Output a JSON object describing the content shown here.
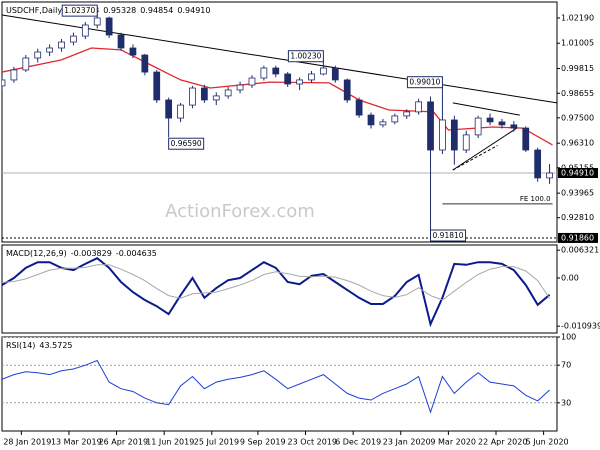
{
  "chart_data": [
    {
      "type": "candlestick",
      "title": "USDCHF,Daily",
      "header_values": [
        0.95113,
        0.95328,
        0.94854,
        {
          "value": 0.9491,
          "label": "0.94910"
        }
      ],
      "xlim": [
        0,
        373
      ],
      "ylim": [
        0.9167,
        1.0294
      ],
      "yticks": [
        {
          "value": 1.0219,
          "label": "1.02190"
        },
        {
          "value": 1.01005,
          "label": "1.01005"
        },
        {
          "value": 0.99815,
          "label": "0.99815"
        },
        {
          "value": 0.98655,
          "label": "0.98655"
        },
        {
          "value": 0.975,
          "label": "0.97500"
        },
        {
          "value": 0.9631,
          "label": "0.96310"
        },
        {
          "value": 0.95155,
          "label": "0.95155"
        },
        {
          "value": 0.93965,
          "label": "0.93965"
        },
        {
          "value": 0.9281,
          "label": "0.92810"
        }
      ],
      "current_price": {
        "value": 0.9491,
        "label": "0.94910"
      },
      "support": {
        "value": 0.9186,
        "label": "0.91860"
      },
      "color": "#1f2d6b",
      "x": [
        0,
        8,
        16,
        24,
        32,
        40,
        48,
        56,
        64,
        72,
        80,
        88,
        96,
        104,
        112,
        120,
        128,
        136,
        144,
        152,
        160,
        168,
        176,
        184,
        192,
        200,
        208,
        216,
        224,
        232,
        240,
        248,
        256,
        264,
        272,
        280,
        288,
        296,
        304,
        312,
        320,
        328,
        336,
        344,
        352,
        360,
        368
      ],
      "open": [
        0.99,
        0.9928,
        0.9975,
        1.0031,
        1.0059,
        1.0078,
        1.0106,
        1.0134,
        1.0186,
        1.0219,
        1.0139,
        1.0078,
        1.0045,
        0.9965,
        0.9834,
        0.9749,
        0.981,
        0.989,
        0.9834,
        0.9853,
        0.9881,
        0.9904,
        0.9937,
        0.9984,
        0.9956,
        0.9909,
        0.9928,
        0.9956,
        0.9984,
        0.9928,
        0.9834,
        0.9763,
        0.9717,
        0.9731,
        0.9759,
        0.9778,
        0.9825,
        0.9599,
        0.974,
        0.9599,
        0.967,
        0.9749,
        0.9731,
        0.9717,
        0.9702,
        0.9599,
        0.9468
      ],
      "high": [
        0.9945,
        0.999,
        1.0045,
        1.0075,
        1.0095,
        1.012,
        1.015,
        1.02,
        1.0237,
        1.0225,
        1.015,
        1.0095,
        1.005,
        0.9975,
        0.9845,
        0.982,
        0.99,
        0.9905,
        0.987,
        0.9895,
        0.992,
        0.995,
        0.9995,
        0.9995,
        0.9965,
        0.994,
        0.997,
        1.0023,
        0.9995,
        0.9935,
        0.9845,
        0.9775,
        0.9745,
        0.977,
        0.979,
        0.984,
        0.985,
        0.9901,
        0.976,
        0.969,
        0.976,
        0.977,
        0.9745,
        0.9735,
        0.971,
        0.961,
        0.9533
      ],
      "low": [
        0.988,
        0.9915,
        0.9965,
        1.001,
        1.004,
        1.006,
        1.009,
        1.012,
        1.017,
        1.0125,
        1.0065,
        1.003,
        0.995,
        0.982,
        0.9659,
        0.973,
        0.9795,
        0.982,
        0.981,
        0.984,
        0.9865,
        0.989,
        0.9925,
        0.994,
        0.9895,
        0.988,
        0.9915,
        0.995,
        0.9915,
        0.982,
        0.975,
        0.97,
        0.9705,
        0.972,
        0.9745,
        0.9765,
        0.9181,
        0.958,
        0.953,
        0.9585,
        0.9655,
        0.9715,
        0.97,
        0.9685,
        0.959,
        0.945,
        0.944
      ],
      "close": [
        0.9928,
        0.9975,
        1.0031,
        1.0059,
        1.0078,
        1.0106,
        1.0134,
        1.0186,
        1.0219,
        1.0139,
        1.0078,
        1.0045,
        0.9965,
        0.9834,
        0.9749,
        0.981,
        0.989,
        0.9834,
        0.9853,
        0.9881,
        0.9904,
        0.9937,
        0.9984,
        0.9956,
        0.9909,
        0.9928,
        0.9956,
        0.9984,
        0.9928,
        0.9834,
        0.9763,
        0.9717,
        0.9731,
        0.9759,
        0.9778,
        0.9825,
        0.9599,
        0.974,
        0.9599,
        0.967,
        0.9749,
        0.9731,
        0.9717,
        0.9702,
        0.9599,
        0.9468,
        0.9491
      ],
      "moving_average": {
        "color": "#e0282e",
        "x": [
          0,
          40,
          60,
          80,
          100,
          120,
          140,
          180,
          220,
          240,
          260,
          290,
          300,
          330,
          350,
          370
        ],
        "values": [
          0.9965,
          1.0022,
          1.0078,
          1.0069,
          0.9998,
          0.9928,
          0.989,
          0.9918,
          0.9914,
          0.9834,
          0.9787,
          0.9778,
          0.9693,
          0.9707,
          0.9702,
          0.9623
        ]
      },
      "trendlines": [
        {
          "x": [
            0,
            373
          ],
          "values": [
            1.0233,
            0.982
          ]
        },
        {
          "x": [
            303,
            348
          ],
          "values": [
            0.982,
            0.9763
          ]
        },
        {
          "x": [
            303,
            346
          ],
          "values": [
            0.9505,
            0.9702
          ]
        },
        {
          "x": [
            303,
            333
          ],
          "values": [
            0.9505,
            0.962
          ],
          "dash": true
        }
      ],
      "fe": {
        "label": "FE 100.0",
        "value": 0.9346,
        "x": [
          296,
          370
        ]
      },
      "annotations": [
        {
          "x": 64,
          "value": 1.0237,
          "label": "1.02370"
        },
        {
          "x": 112,
          "value": 0.9659,
          "label": "0.96590"
        },
        {
          "x": 216,
          "value": 1.0023,
          "label": "1.00230"
        },
        {
          "x": 296,
          "value": 0.9901,
          "label": "0.99010"
        },
        {
          "x": 288,
          "value": 0.9181,
          "label": "0.91810"
        }
      ],
      "watermark": "ActionForex.com"
    },
    {
      "type": "line",
      "title": "MACD(12,26,9)",
      "xlim": [
        0,
        373
      ],
      "ylim": [
        -0.0125,
        0.0075
      ],
      "yticks": [
        0.006321,
        {
          "value": 0,
          "label": "0.00"
        },
        -0.010939
      ],
      "x": [
        0,
        8,
        16,
        24,
        32,
        40,
        48,
        56,
        64,
        72,
        80,
        88,
        96,
        104,
        112,
        120,
        128,
        136,
        144,
        152,
        160,
        168,
        176,
        184,
        192,
        200,
        208,
        216,
        224,
        232,
        240,
        248,
        256,
        264,
        272,
        280,
        288,
        296,
        304,
        312,
        320,
        328,
        336,
        344,
        352,
        360,
        368
      ],
      "series": [
        {
          "color": "#0b1a8c",
          "width": 2,
          "values": [
            -0.0016,
            0,
            0.0023,
            0.0036,
            0.0036,
            0.0023,
            0.0018,
            0.0032,
            0.0045,
            0.0023,
            -0.0009,
            -0.0032,
            -0.005,
            -0.0064,
            -0.0082,
            -0.0039,
            0,
            -0.0045,
            -0.0023,
            -0.0005,
            0,
            0.0018,
            0.0036,
            0.0023,
            -0.0009,
            -0.0014,
            0.0005,
            0.0009,
            -0.0009,
            -0.0027,
            -0.0045,
            -0.0059,
            -0.0059,
            -0.0041,
            -0.0009,
            0.0007,
            -0.0105,
            -0.0045,
            0.0032,
            0.003,
            0.0036,
            0.0036,
            0.0032,
            0.0018,
            -0.0016,
            -0.0061,
            -0.003829
          ]
        },
        {
          "color": "#a8a8a8",
          "width": 1,
          "values": [
            -0.001,
            -0.0008,
            -0.0002,
            0.0008,
            0.0018,
            0.0022,
            0.0022,
            0.0024,
            0.003,
            0.003,
            0.002,
            0.0008,
            -0.0006,
            -0.0024,
            -0.004,
            -0.0046,
            -0.0036,
            -0.0034,
            -0.0032,
            -0.0024,
            -0.0016,
            -0.0006,
            0.0008,
            0.0014,
            0.001,
            0.0004,
            0.0003,
            0.0004,
            0.0002,
            -0.0006,
            -0.0016,
            -0.003,
            -0.004,
            -0.0044,
            -0.0038,
            -0.0022,
            -0.004,
            -0.005,
            -0.003,
            -0.001,
            0.0008,
            0.002,
            0.0026,
            0.0026,
            0.0016,
            -0.0006,
            -0.004635
          ]
        }
      ]
    },
    {
      "type": "line",
      "title": "RSI(14)",
      "xlim": [
        0,
        373
      ],
      "ylim": [
        0,
        100
      ],
      "yticks": [
        100,
        70,
        30
      ],
      "grid": true,
      "x": [
        0,
        8,
        16,
        24,
        32,
        40,
        48,
        56,
        64,
        72,
        80,
        88,
        96,
        104,
        112,
        120,
        128,
        136,
        144,
        152,
        160,
        168,
        176,
        184,
        192,
        200,
        208,
        216,
        224,
        232,
        240,
        248,
        256,
        264,
        272,
        280,
        288,
        296,
        304,
        312,
        320,
        328,
        336,
        344,
        352,
        360,
        368
      ],
      "series": [
        {
          "color": "#1f3fd6",
          "width": 1,
          "values": [
            55,
            60,
            63,
            62,
            60,
            64,
            66,
            70,
            75,
            52,
            45,
            42,
            35,
            30,
            28,
            48,
            58,
            45,
            52,
            55,
            57,
            60,
            64,
            55,
            45,
            50,
            55,
            60,
            50,
            40,
            35,
            33,
            40,
            45,
            50,
            58,
            20,
            58,
            40,
            52,
            62,
            52,
            50,
            48,
            38,
            32,
            43.5725
          ]
        }
      ],
      "xticks": [
        {
          "value": 13,
          "label": "28 Jan 2019"
        },
        {
          "value": 45,
          "label": "13 Mar 2019"
        },
        {
          "value": 77,
          "label": "26 Apr 2019"
        },
        {
          "value": 109,
          "label": "11 Jun 2019"
        },
        {
          "value": 141,
          "label": "25 Jul 2019"
        },
        {
          "value": 172,
          "label": "9 Sep 2019"
        },
        {
          "value": 204,
          "label": "23 Oct 2019"
        },
        {
          "value": 236,
          "label": "6 Dec 2019"
        },
        {
          "value": 268,
          "label": "23 Jan 2020"
        },
        {
          "value": 300,
          "label": "9 Mar 2020"
        },
        {
          "value": 332,
          "label": "22 Apr 2020"
        },
        {
          "value": 364,
          "label": "5 Jun 2020"
        }
      ]
    }
  ]
}
